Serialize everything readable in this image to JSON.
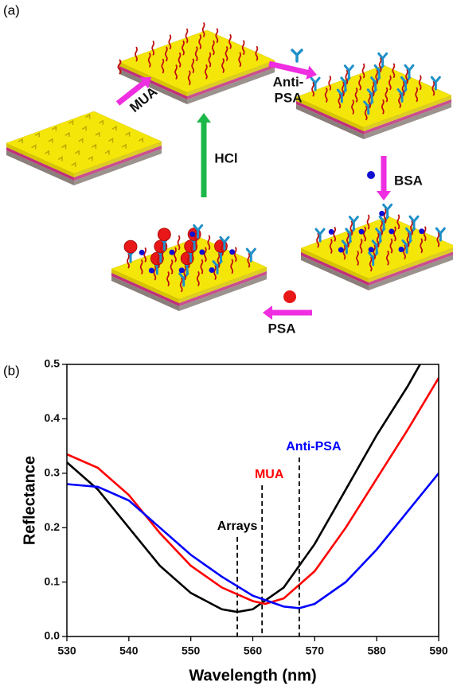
{
  "panel_labels": [
    "(a)",
    "(b)"
  ],
  "diagram": {
    "mua": "MUA",
    "anti_psa": [
      "Anti-",
      "PSA"
    ],
    "bsa": "BSA",
    "psa": "PSA",
    "hcl": "HCl"
  },
  "chart_data": {
    "type": "line",
    "xlabel": "Wavelength (nm)",
    "ylabel": "Reflectance",
    "xlim": [
      530,
      590
    ],
    "ylim": [
      0,
      0.5
    ],
    "xticks": [
      530,
      540,
      550,
      560,
      570,
      580,
      590
    ],
    "yticks": [
      {
        "value": 0,
        "label": "0.0"
      },
      0.1,
      0.2,
      0.3,
      0.4,
      0.5
    ],
    "series": [
      {
        "name": "Arrays",
        "color": "#000000",
        "x": [
          530,
          535,
          540,
          545,
          550,
          555,
          557.5,
          560,
          565,
          570,
          575,
          580,
          585,
          587
        ],
        "values": [
          0.32,
          0.27,
          0.2,
          0.13,
          0.08,
          0.05,
          0.045,
          0.05,
          0.09,
          0.17,
          0.27,
          0.37,
          0.46,
          0.5
        ],
        "dip": {
          "x": 557.5,
          "top": 0.183
        }
      },
      {
        "name": "MUA",
        "color": "#ff0000",
        "x": [
          530,
          535,
          540,
          545,
          550,
          555,
          560,
          562,
          565,
          570,
          575,
          580,
          585,
          590
        ],
        "values": [
          0.335,
          0.31,
          0.26,
          0.19,
          0.13,
          0.09,
          0.065,
          0.06,
          0.07,
          0.12,
          0.2,
          0.29,
          0.38,
          0.475
        ],
        "dip": {
          "x": 561.5,
          "top": 0.278
        }
      },
      {
        "name": "Anti-PSA",
        "color": "#0000ff",
        "x": [
          530,
          535,
          540,
          545,
          550,
          555,
          560,
          565,
          567.5,
          570,
          575,
          580,
          585,
          590
        ],
        "values": [
          0.28,
          0.275,
          0.25,
          0.2,
          0.15,
          0.11,
          0.075,
          0.055,
          0.052,
          0.06,
          0.1,
          0.16,
          0.23,
          0.3
        ],
        "dip": {
          "x": 567.5,
          "top": 0.329
        }
      }
    ]
  }
}
